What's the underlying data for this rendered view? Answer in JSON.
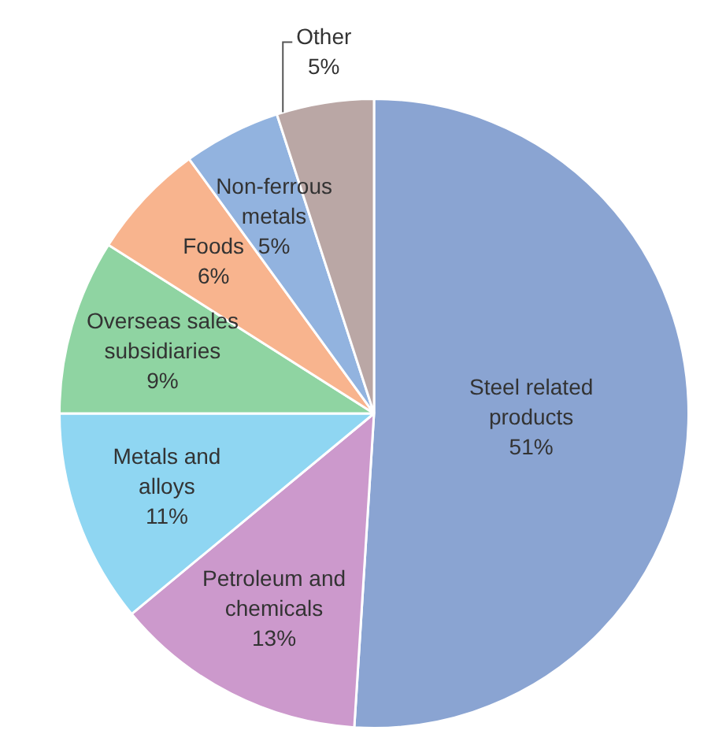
{
  "chart_data": {
    "type": "pie",
    "categories": [
      "Steel related products",
      "Petroleum and chemicals",
      "Metals and alloys",
      "Overseas sales subsidiaries",
      "Foods",
      "Non-ferrous metals",
      "Other"
    ],
    "values": [
      51,
      13,
      11,
      9,
      6,
      5,
      5
    ],
    "colors": [
      "#8aa4d2",
      "#cc99cc",
      "#8fd6f2",
      "#8fd4a2",
      "#f8b48e",
      "#92b3df",
      "#baa7a5"
    ],
    "value_labels": [
      "51%",
      "13%",
      "11%",
      "9%",
      "6%",
      "5%",
      "5%"
    ],
    "legend": false
  }
}
